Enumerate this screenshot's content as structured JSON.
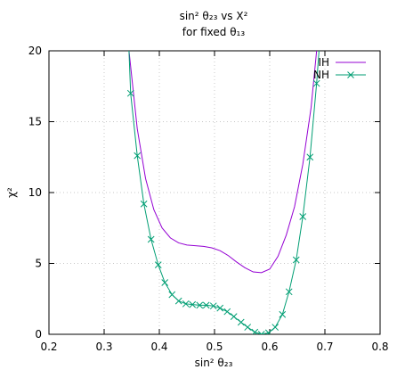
{
  "chart_data": {
    "type": "line",
    "title_line1": "sin² θ₂₃ vs X²",
    "title_line2": "for fixed θ₁₃",
    "xlabel": "sin² θ₂₃",
    "ylabel": "χ²",
    "xlim": [
      0.2,
      0.8
    ],
    "ylim": [
      0,
      20
    ],
    "xticks": [
      "0.2",
      "0.3",
      "0.4",
      "0.5",
      "0.6",
      "0.7",
      "0.8"
    ],
    "yticks": [
      "0",
      "5",
      "10",
      "15",
      "20"
    ],
    "grid": true,
    "legend_position": "top-right",
    "series": [
      {
        "name": "IH",
        "color": "#9400d3",
        "marker": "none",
        "points": [
          [
            0.335,
            30
          ],
          [
            0.345,
            20
          ],
          [
            0.36,
            14.5
          ],
          [
            0.375,
            11
          ],
          [
            0.39,
            8.8
          ],
          [
            0.405,
            7.5
          ],
          [
            0.42,
            6.8
          ],
          [
            0.435,
            6.45
          ],
          [
            0.45,
            6.3
          ],
          [
            0.465,
            6.25
          ],
          [
            0.48,
            6.2
          ],
          [
            0.495,
            6.1
          ],
          [
            0.51,
            5.9
          ],
          [
            0.525,
            5.55
          ],
          [
            0.54,
            5.1
          ],
          [
            0.555,
            4.7
          ],
          [
            0.57,
            4.4
          ],
          [
            0.585,
            4.35
          ],
          [
            0.6,
            4.6
          ],
          [
            0.615,
            5.5
          ],
          [
            0.63,
            7.0
          ],
          [
            0.645,
            9.0
          ],
          [
            0.66,
            12.0
          ],
          [
            0.675,
            16.0
          ],
          [
            0.685,
            20
          ],
          [
            0.69,
            24
          ]
        ]
      },
      {
        "name": "NH",
        "color": "#009e73",
        "marker": "x",
        "points": [
          [
            0.335,
            30
          ],
          [
            0.348,
            17.0
          ],
          [
            0.36,
            12.6
          ],
          [
            0.372,
            9.2
          ],
          [
            0.385,
            6.7
          ],
          [
            0.398,
            4.9
          ],
          [
            0.41,
            3.65
          ],
          [
            0.423,
            2.8
          ],
          [
            0.435,
            2.35
          ],
          [
            0.448,
            2.15
          ],
          [
            0.46,
            2.1
          ],
          [
            0.473,
            2.05
          ],
          [
            0.485,
            2.05
          ],
          [
            0.498,
            2.0
          ],
          [
            0.51,
            1.85
          ],
          [
            0.523,
            1.6
          ],
          [
            0.535,
            1.25
          ],
          [
            0.548,
            0.85
          ],
          [
            0.56,
            0.5
          ],
          [
            0.573,
            0.15
          ],
          [
            0.585,
            0.0
          ],
          [
            0.598,
            0.1
          ],
          [
            0.61,
            0.5
          ],
          [
            0.623,
            1.4
          ],
          [
            0.635,
            3.0
          ],
          [
            0.648,
            5.25
          ],
          [
            0.66,
            8.3
          ],
          [
            0.673,
            12.5
          ],
          [
            0.685,
            17.7
          ],
          [
            0.695,
            23
          ]
        ]
      }
    ]
  }
}
